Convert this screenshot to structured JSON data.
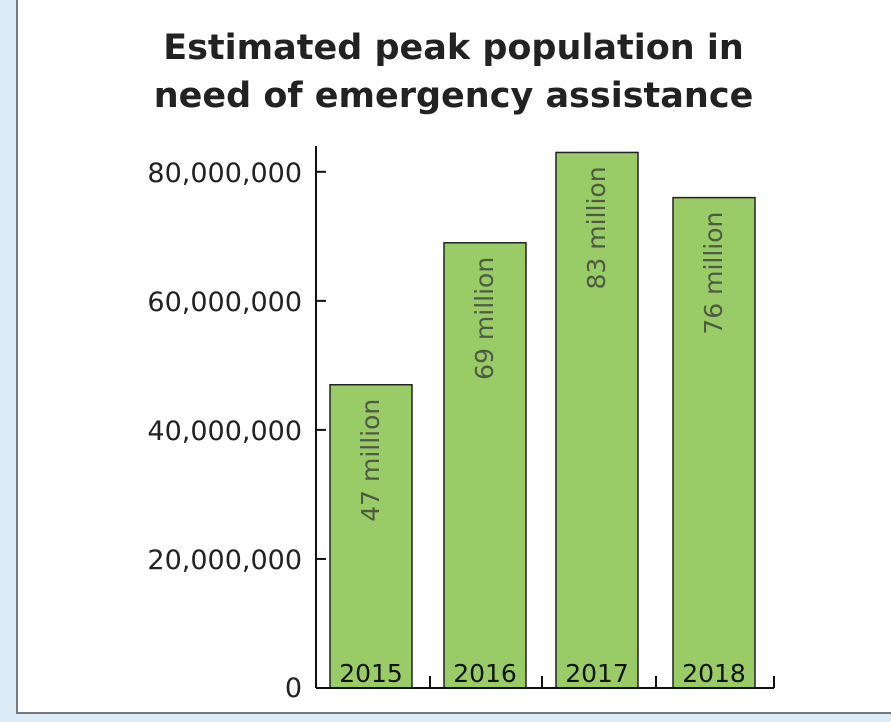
{
  "chart_data": {
    "type": "bar",
    "title": "Estimated peak population in need of emergency assistance",
    "title_lines": [
      "Estimated peak population in",
      "need of emergency assistance"
    ],
    "categories": [
      "2015",
      "2016",
      "2017",
      "2018"
    ],
    "values": [
      47000000,
      69000000,
      83000000,
      76000000
    ],
    "data_labels": [
      "47 million",
      "69 million",
      "83 million",
      "76 million"
    ],
    "y_ticks": [
      {
        "value": 0,
        "label": "0"
      },
      {
        "value": 20000000,
        "label": "20,000,000"
      },
      {
        "value": 40000000,
        "label": "40,000,000"
      },
      {
        "value": 60000000,
        "label": "60,000,000"
      },
      {
        "value": 80000000,
        "label": "80,000,000"
      }
    ],
    "ylim": [
      0,
      84000000
    ],
    "xlabel": "",
    "ylabel": "",
    "grid": false,
    "colors": {
      "bar_fill": "#99cc66",
      "bar_stroke": "#222222",
      "axis": "#111111",
      "background": "#dcebf6"
    }
  }
}
